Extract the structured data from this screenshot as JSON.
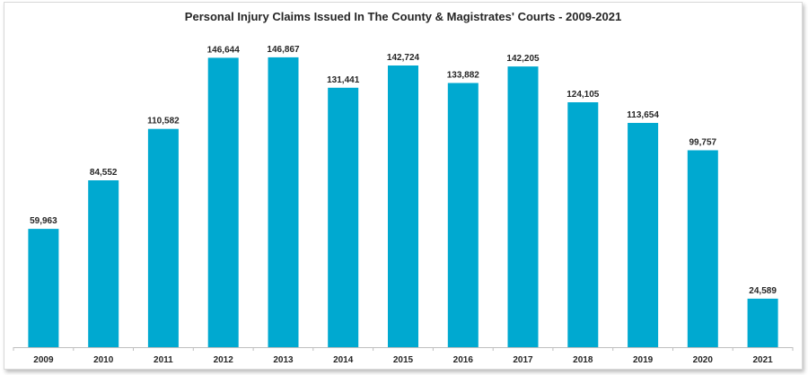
{
  "chart_data": {
    "type": "bar",
    "title": "Personal Injury Claims Issued In The County & Magistrates' Courts - 2009-2021",
    "categories": [
      "2009",
      "2010",
      "2011",
      "2012",
      "2013",
      "2014",
      "2015",
      "2016",
      "2017",
      "2018",
      "2019",
      "2020",
      "2021"
    ],
    "values": [
      59963,
      84552,
      110582,
      146644,
      146867,
      131441,
      142724,
      133882,
      142205,
      124105,
      113654,
      99757,
      24589
    ],
    "value_labels": [
      "59,963",
      "84,552",
      "110,582",
      "146,644",
      "146,867",
      "131,441",
      "142,724",
      "133,882",
      "142,205",
      "124,105",
      "113,654",
      "99,757",
      "24,589"
    ],
    "xlabel": "",
    "ylabel": "",
    "ylim": [
      0,
      160000
    ],
    "grid": false,
    "legend": "none",
    "bar_color": "#00a9d0"
  }
}
